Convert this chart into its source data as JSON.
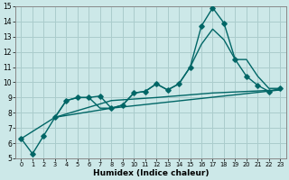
{
  "xlabel": "Humidex (Indice chaleur)",
  "bg_color": "#cce8e8",
  "grid_color": "#aacccc",
  "line_color": "#006666",
  "xlim": [
    -0.5,
    23.5
  ],
  "ylim": [
    5,
    15
  ],
  "xticks": [
    0,
    1,
    2,
    3,
    4,
    5,
    6,
    7,
    8,
    9,
    10,
    11,
    12,
    13,
    14,
    15,
    16,
    17,
    18,
    19,
    20,
    21,
    22,
    23
  ],
  "yticks": [
    5,
    6,
    7,
    8,
    9,
    10,
    11,
    12,
    13,
    14,
    15
  ],
  "series": [
    {
      "x": [
        0,
        1,
        2,
        3,
        4,
        5,
        6,
        7,
        8,
        9,
        10,
        11,
        12,
        13,
        14,
        15,
        16,
        17,
        18,
        19,
        20,
        21,
        22,
        23
      ],
      "y": [
        6.3,
        5.3,
        6.5,
        7.7,
        8.8,
        9.0,
        9.0,
        9.1,
        8.3,
        8.5,
        9.3,
        9.4,
        9.9,
        9.5,
        9.9,
        11.0,
        13.7,
        14.9,
        13.9,
        11.5,
        10.4,
        9.8,
        9.4,
        9.6
      ],
      "marker": "D",
      "lw": 1.0
    },
    {
      "x": [
        3,
        4,
        5,
        6,
        7,
        8,
        9,
        10,
        11,
        12,
        13,
        14,
        15,
        16,
        17,
        18,
        19,
        20,
        21,
        22,
        23
      ],
      "y": [
        7.7,
        8.8,
        9.0,
        9.0,
        8.3,
        8.3,
        8.5,
        9.3,
        9.4,
        9.9,
        9.5,
        9.9,
        11.0,
        12.5,
        13.5,
        12.8,
        11.5,
        11.5,
        10.4,
        9.6,
        9.6
      ],
      "marker": null,
      "lw": 1.0
    },
    {
      "x": [
        0,
        3,
        8,
        23
      ],
      "y": [
        6.3,
        7.7,
        8.3,
        9.5
      ],
      "marker": null,
      "lw": 1.0
    },
    {
      "x": [
        3,
        8,
        12,
        17,
        23
      ],
      "y": [
        7.7,
        8.8,
        9.0,
        9.3,
        9.5
      ],
      "marker": null,
      "lw": 1.0
    }
  ]
}
